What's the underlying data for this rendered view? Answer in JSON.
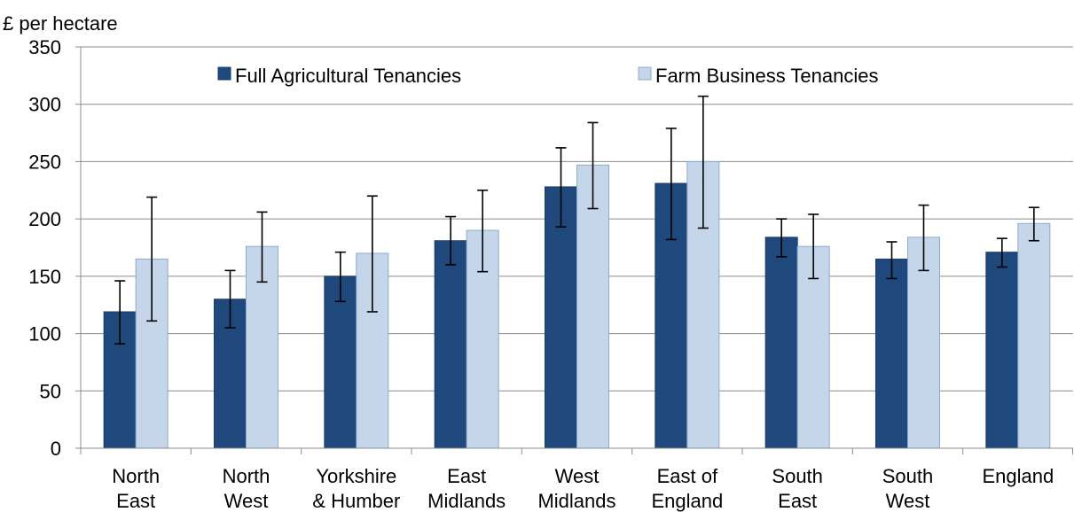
{
  "chart_data": {
    "type": "bar",
    "unit_label": "£ per hectare",
    "ylim": [
      0,
      350
    ],
    "ytick_step": 50,
    "yticks": [
      "0",
      "50",
      "100",
      "150",
      "200",
      "250",
      "300",
      "350"
    ],
    "grid": true,
    "legend_position": "top",
    "categories": [
      [
        "North",
        "East"
      ],
      [
        "North",
        "West"
      ],
      [
        "Yorkshire",
        "& Humber"
      ],
      [
        "East",
        "Midlands"
      ],
      [
        "West",
        "Midlands"
      ],
      [
        "East of",
        "England"
      ],
      [
        "South",
        "East"
      ],
      [
        "South",
        "West"
      ],
      [
        "England"
      ]
    ],
    "series": [
      {
        "name": "Full Agricultural Tenancies",
        "color": "#1f497d",
        "values": [
          119,
          130,
          150,
          181,
          228,
          231,
          184,
          165,
          171
        ],
        "err_low": [
          91,
          105,
          128,
          160,
          193,
          182,
          167,
          148,
          158
        ],
        "err_high": [
          146,
          155,
          171,
          202,
          262,
          279,
          200,
          180,
          183
        ]
      },
      {
        "name": "Farm Business Tenancies",
        "color": "#c5d5ea",
        "values": [
          165,
          176,
          170,
          190,
          247,
          250,
          176,
          184,
          196
        ],
        "err_low": [
          111,
          145,
          119,
          154,
          209,
          192,
          148,
          155,
          181
        ],
        "err_high": [
          219,
          206,
          220,
          225,
          284,
          307,
          204,
          212,
          210
        ]
      }
    ]
  }
}
